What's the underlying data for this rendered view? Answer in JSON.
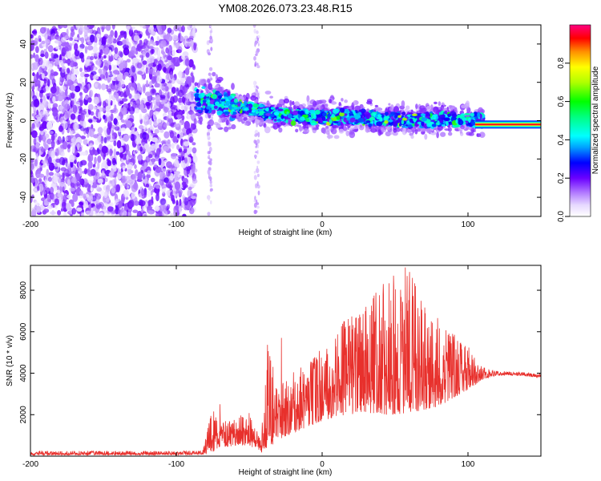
{
  "chart_data": [
    {
      "type": "heatmap",
      "title": "YM08.2026.073.23.48.R15",
      "xlabel": "Height of straight line (km)",
      "ylabel": "Frequency (Hz)",
      "xlim": [
        -200,
        150
      ],
      "ylim": [
        -50,
        50
      ],
      "xticks": [
        -200,
        -100,
        0,
        100
      ],
      "xtick_labels": [
        "-200",
        "-100",
        "0",
        "100"
      ],
      "yticks": [
        -40,
        -20,
        0,
        20,
        40
      ],
      "ytick_labels": [
        "-40",
        "-20",
        "0",
        "20",
        "40"
      ],
      "colorbar": {
        "label": "Normalized spectral amplitude",
        "range": [
          0,
          1
        ],
        "ticks": [
          0.0,
          0.2,
          0.4,
          0.6,
          0.8
        ],
        "tick_labels": [
          "0.0",
          "0.2",
          "0.4",
          "0.6",
          "0.8"
        ]
      },
      "regions": [
        {
          "name": "noise",
          "x": [
            -200,
            -87
          ],
          "y": [
            -50,
            50
          ],
          "amplitude": 0.12
        },
        {
          "name": "sparse",
          "x": [
            -87,
            -20
          ],
          "y": [
            -50,
            50
          ],
          "amplitude": 0.05
        },
        {
          "name": "signal-band",
          "x": [
            -87,
            110
          ],
          "center_freq_hz": [
            12,
            8,
            4,
            2,
            2,
            1,
            0,
            1,
            0
          ],
          "amplitude": 0.35
        },
        {
          "name": "tone",
          "x": [
            105,
            150
          ],
          "center_freq_hz": -2,
          "amplitude": 0.95
        }
      ]
    },
    {
      "type": "line",
      "xlabel": "Height of straight line (km)",
      "ylabel": "SNR (10 * v/v)",
      "xlim": [
        -200,
        150
      ],
      "ylim": [
        0,
        9200
      ],
      "xticks": [
        -200,
        -100,
        0,
        100
      ],
      "xtick_labels": [
        "-200",
        "-100",
        "0",
        "100"
      ],
      "yticks": [
        2000,
        4000,
        6000,
        8000
      ],
      "ytick_labels": [
        "2000",
        "4000",
        "6000",
        "8000"
      ],
      "series": [
        {
          "name": "SNR",
          "color": "#e8302c",
          "envelope_x": [
            -200,
            -100,
            -82,
            -75,
            -70,
            -60,
            -50,
            -42,
            -38,
            -30,
            -20,
            -10,
            0,
            10,
            20,
            30,
            40,
            50,
            60,
            70,
            80,
            90,
            100,
            110,
            120,
            130,
            150
          ],
          "envelope_low": [
            50,
            60,
            80,
            200,
            400,
            500,
            500,
            150,
            300,
            800,
            1100,
            1400,
            1700,
            1900,
            2000,
            2100,
            2000,
            2000,
            2100,
            2200,
            2400,
            2800,
            3200,
            3700,
            3900,
            3900,
            3800
          ],
          "envelope_high": [
            250,
            250,
            300,
            2500,
            1500,
            2000,
            2200,
            900,
            5600,
            3300,
            4200,
            4600,
            5200,
            6300,
            7000,
            7300,
            8200,
            8500,
            9000,
            7300,
            6700,
            6000,
            5300,
            4300,
            4100,
            4100,
            4000
          ],
          "peaks": [
            {
              "x": -70,
              "y": 2500
            },
            {
              "x": -28,
              "y": 5700
            },
            {
              "x": 19,
              "y": 6300
            },
            {
              "x": 30,
              "y": 7200
            },
            {
              "x": 42,
              "y": 8300
            },
            {
              "x": 49,
              "y": 8700
            },
            {
              "x": 57,
              "y": 9100
            },
            {
              "x": 64,
              "y": 8200
            }
          ]
        }
      ]
    }
  ]
}
